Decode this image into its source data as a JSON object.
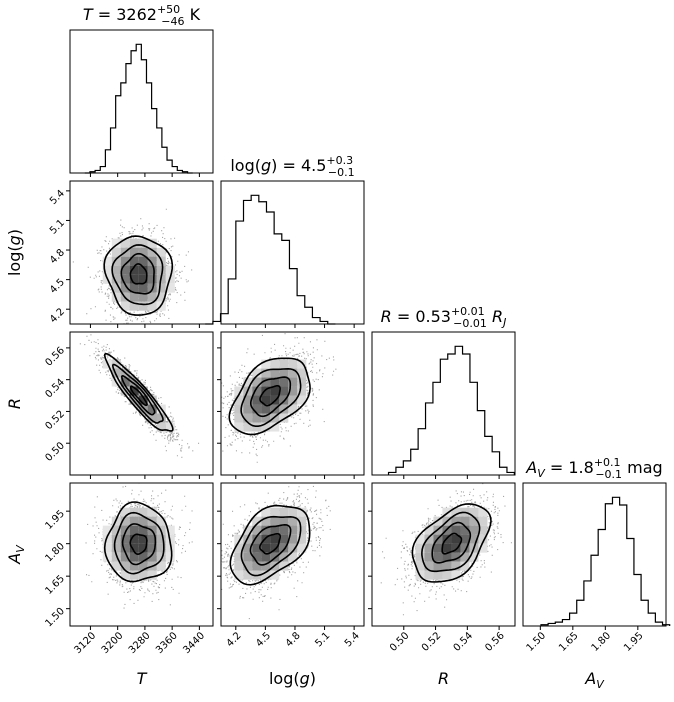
{
  "chart_data": {
    "type": "corner",
    "parameters": [
      {
        "key": "T",
        "label_main": "T",
        "label_sub": "",
        "range": [
          3060,
          3480
        ],
        "ticks": [
          3120,
          3200,
          3280,
          3360,
          3440
        ],
        "tick_labels": [
          "3120",
          "3200",
          "3280",
          "3360",
          "3440"
        ],
        "median": 3262,
        "sigma": 48,
        "title": {
          "pre": "T = 3262",
          "sup": "+50",
          "sub": "−46",
          "post": " K"
        }
      },
      {
        "key": "logg",
        "label_main": "log(g)",
        "label_sub": "",
        "range": [
          4.05,
          5.5
        ],
        "ticks": [
          4.2,
          4.5,
          4.8,
          5.1,
          5.4
        ],
        "tick_labels": [
          "4.2",
          "4.5",
          "4.8",
          "5.1",
          "5.4"
        ],
        "median": 4.55,
        "sigma": 0.2,
        "title": {
          "pre": "log(g) = 4.5",
          "sup": "+0.3",
          "sub": "−0.1",
          "post": ""
        }
      },
      {
        "key": "R",
        "label_main": "R",
        "label_sub": "",
        "range": [
          0.48,
          0.57
        ],
        "ticks": [
          0.5,
          0.52,
          0.54,
          0.56
        ],
        "tick_labels": [
          "0.50",
          "0.52",
          "0.54",
          "0.56"
        ],
        "median": 0.53,
        "sigma": 0.012,
        "title": {
          "pre": "R = 0.53",
          "sup": "+0.01",
          "sub": "−0.01",
          "post": " R",
          "post_sub": "J"
        }
      },
      {
        "key": "AV",
        "label_main": "A",
        "label_sub": "V",
        "range": [
          1.42,
          2.08
        ],
        "ticks": [
          1.5,
          1.65,
          1.8,
          1.95
        ],
        "tick_labels": [
          "1.50",
          "1.65",
          "1.80",
          "1.95"
        ],
        "median": 1.8,
        "sigma": 0.09,
        "title": {
          "pre": "A",
          "pre_sub": "V",
          "pre2": " = 1.8",
          "sup": "+0.1",
          "sub": "−0.1",
          "post": " mag"
        }
      }
    ],
    "histograms": [
      {
        "param": "T",
        "counts": [
          0,
          1,
          2,
          5,
          18,
          35,
          60,
          70,
          85,
          95,
          100,
          88,
          70,
          50,
          35,
          20,
          10,
          5,
          2,
          1,
          0
        ]
      },
      {
        "param": "log(g)",
        "counts": [
          0,
          2,
          8,
          35,
          80,
          96,
          100,
          95,
          87,
          70,
          65,
          43,
          22,
          13,
          5,
          2,
          0
        ]
      },
      {
        "param": "R",
        "counts": [
          2,
          6,
          11,
          20,
          36,
          56,
          72,
          90,
          94,
          100,
          94,
          72,
          50,
          30,
          18,
          6,
          2
        ]
      },
      {
        "param": "A_V",
        "counts": [
          1,
          2,
          3,
          5,
          10,
          20,
          35,
          55,
          75,
          95,
          100,
          94,
          68,
          40,
          20,
          10,
          3,
          1
        ]
      }
    ],
    "correlations": [
      {
        "pair": [
          "log(g)",
          "T"
        ],
        "rho": -0.05
      },
      {
        "pair": [
          "R",
          "T"
        ],
        "rho": -0.92
      },
      {
        "pair": [
          "R",
          "log(g)"
        ],
        "rho": 0.45
      },
      {
        "pair": [
          "A_V",
          "T"
        ],
        "rho": 0.0
      },
      {
        "pair": [
          "A_V",
          "log(g)"
        ],
        "rho": 0.45
      },
      {
        "pair": [
          "A_V",
          "R"
        ],
        "rho": 0.45
      }
    ],
    "grid": false,
    "legend": "none"
  }
}
